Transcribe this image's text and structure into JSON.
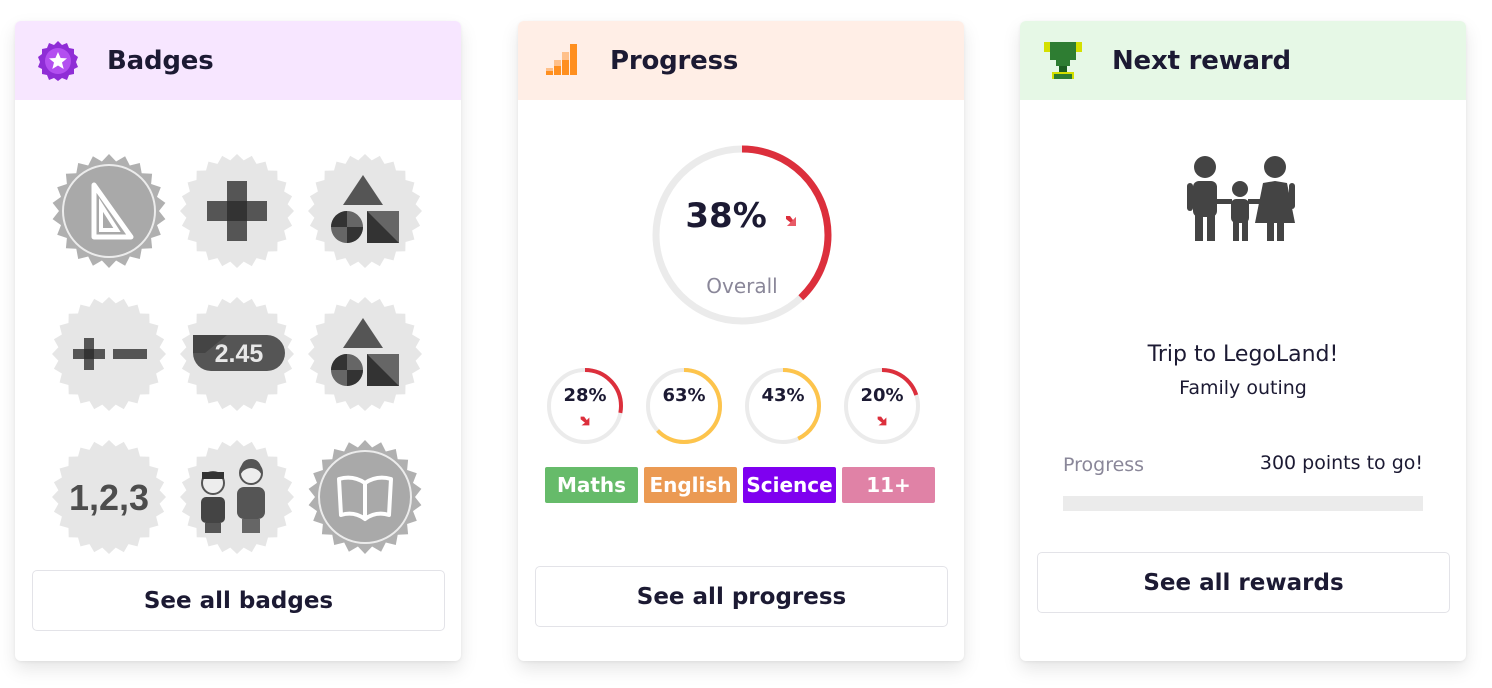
{
  "badges_card": {
    "title": "Badges",
    "header_bg": "#f7e6ff",
    "icon": "star-medal-icon",
    "badges": [
      {
        "name": "set-square-badge",
        "shape": "sealed",
        "icon": "set-square-icon"
      },
      {
        "name": "plus-badge",
        "shape": "zigzag",
        "icon": "plus-icon"
      },
      {
        "name": "shapes-badge",
        "shape": "zigzag",
        "icon": "shapes-icon"
      },
      {
        "name": "plus-minus-badge",
        "shape": "zigzag",
        "icon": "plus-minus-icon"
      },
      {
        "name": "decimal-badge",
        "shape": "zigzag",
        "icon": "decimal-icon",
        "text": "2.45"
      },
      {
        "name": "shapes-badge-2",
        "shape": "zigzag",
        "icon": "shapes-icon"
      },
      {
        "name": "counting-badge",
        "shape": "zigzag",
        "icon": "counting-icon",
        "text": "1,2,3"
      },
      {
        "name": "people-badge",
        "shape": "zigzag",
        "icon": "people-icon"
      },
      {
        "name": "book-badge",
        "shape": "sealed",
        "icon": "book-icon"
      }
    ],
    "button": "See all badges"
  },
  "progress_card": {
    "title": "Progress",
    "header_bg": "#ffeee6",
    "icon": "bar-chart-icon",
    "overall": {
      "value": 38,
      "text": "38%",
      "label": "Overall",
      "trend": "down",
      "color": "#dc2f3c"
    },
    "subjects": [
      {
        "name": "Maths",
        "value": 28,
        "text": "28%",
        "trend": "down",
        "ring_color": "#dc2f3c",
        "tag_color": "#66bb6a"
      },
      {
        "name": "English",
        "value": 63,
        "text": "63%",
        "trend": "none",
        "ring_color": "#fdc44c",
        "tag_color": "#eb9a53"
      },
      {
        "name": "Science",
        "value": 43,
        "text": "43%",
        "trend": "none",
        "ring_color": "#fdc44c",
        "tag_color": "#7f00f0"
      },
      {
        "name": "11+",
        "value": 20,
        "text": "20%",
        "trend": "down",
        "ring_color": "#dc2f3c",
        "tag_color": "#e082a6"
      }
    ],
    "button": "See all progress"
  },
  "reward_card": {
    "title": "Next reward",
    "header_bg": "#e6f8e6",
    "icon": "trophy-icon",
    "reward_icon": "family-icon",
    "reward_title": "Trip to LegoLand!",
    "reward_subtitle": "Family outing",
    "progress_label": "Progress",
    "progress_text": "300 points to go!",
    "progress_value": 0,
    "button": "See all rewards"
  },
  "colors": {
    "text": "#1c1a33",
    "muted": "#8a8799",
    "track": "#ebebeb",
    "badge_gray": "#e6e6e6",
    "badge_dark": "#4d4d4d"
  }
}
